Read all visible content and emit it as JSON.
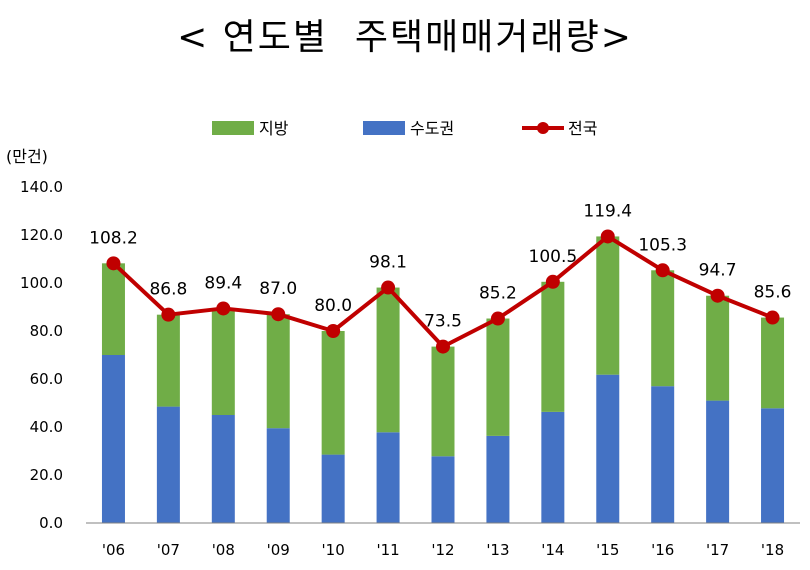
{
  "chart_data": {
    "type": "bar",
    "title": "< 연도별  주택매매거래량>",
    "unit_label": "(만건)",
    "categories": [
      "'06",
      "'07",
      "'08",
      "'09",
      "'10",
      "'11",
      "'12",
      "'13",
      "'14",
      "'15",
      "'16",
      "'17",
      "'18"
    ],
    "series": [
      {
        "name": "수도권",
        "kind": "stacked-bar",
        "color": "#4472C4",
        "values": [
          70.0,
          48.5,
          45.0,
          39.5,
          28.5,
          37.8,
          27.8,
          36.3,
          46.3,
          61.8,
          57.0,
          51.0,
          47.8
        ]
      },
      {
        "name": "지방",
        "kind": "stacked-bar",
        "color": "#70AD47",
        "values": [
          38.2,
          38.3,
          44.4,
          47.5,
          51.5,
          60.3,
          45.7,
          48.9,
          54.2,
          57.6,
          48.3,
          43.7,
          37.8
        ]
      },
      {
        "name": "전국",
        "kind": "line",
        "color": "#C00000",
        "values": [
          108.2,
          86.8,
          89.4,
          87.0,
          80.0,
          98.1,
          73.5,
          85.2,
          100.5,
          119.4,
          105.3,
          94.7,
          85.6
        ],
        "labels": [
          "108.2",
          "86.8",
          "89.4",
          "87.0",
          "80.0",
          "98.1",
          "73.5",
          "85.2",
          "100.5",
          "119.4",
          "105.3",
          "94.7",
          "85.6"
        ]
      }
    ],
    "y_ticks": [
      "0.0",
      "20.0",
      "40.0",
      "60.0",
      "80.0",
      "100.0",
      "120.0",
      "140.0"
    ],
    "ylim": [
      0,
      140
    ],
    "legend_order": [
      "지방",
      "수도권",
      "전국"
    ],
    "legend_position": "top-center",
    "grid": false
  }
}
